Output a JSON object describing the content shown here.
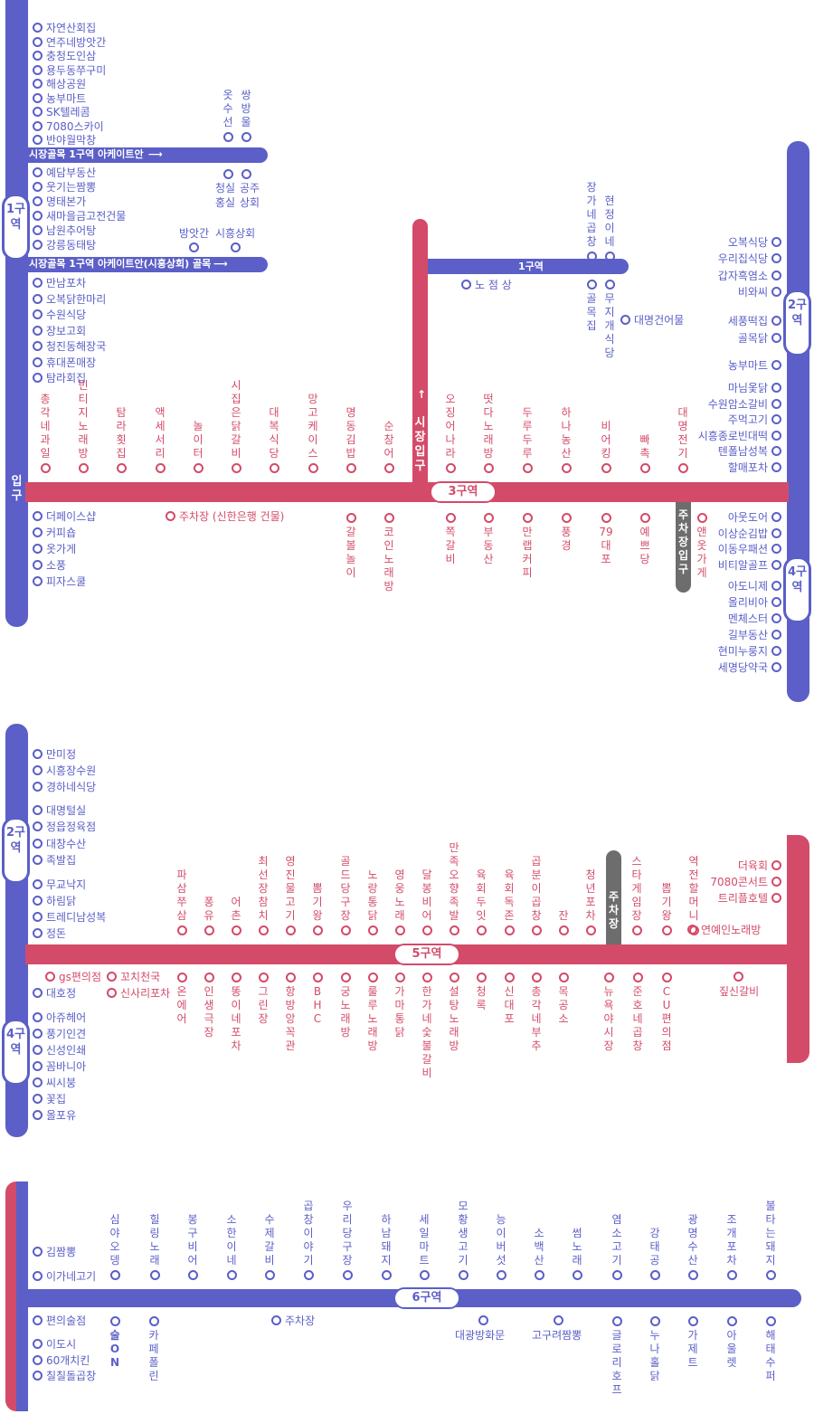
{
  "colors": {
    "blue": "#5b5fc7",
    "red": "#d34b69",
    "gray": "#6d6d6d"
  },
  "sec1": {
    "entrance": "입구",
    "z1": "1구역",
    "z2": "2구역",
    "z4": "4구역",
    "z3": "3구역",
    "market_entrance": "시장입구",
    "parking_entrance": "주차장입구",
    "arcade1": "시장골목 1구역 아케이트안",
    "arcade2": "시장골목 1구역 아케이트안(시흥상회) 골목",
    "zone1_bar": "1구역",
    "left_list": [
      "자연산회집",
      "연주네방앗간",
      "충청도인삼",
      "용두동쭈구미",
      "해상공원",
      "농부마트",
      "SK텔레콤",
      "7080스카이",
      "반야월막창"
    ],
    "left_list2": [
      "예담부동산",
      "웃기는짬뽕",
      "명태본가",
      "새마을금고전건물",
      "남원추어탕",
      "강릉동태탕"
    ],
    "left_list3": [
      "만남포차",
      "오복닭한마리",
      "수원식당",
      "장보고회",
      "청진동해장국",
      "휴대폰매장",
      "탐라회집"
    ],
    "left_list4": [
      "더페이스샵",
      "커피숍",
      "옷가게",
      "소풍",
      "피자스쿨"
    ],
    "v_oksu": "옷수선",
    "v_ssang": "쌍방울",
    "cheongsil": "청실 홍실",
    "gongju": "공주 상회",
    "bangat": "방앗간",
    "siheung_shop": "시흥상회",
    "v_janga": "장가네곱창",
    "v_hyeon": "현정이네",
    "v_golmok": "골목집",
    "v_muji": "무지개식당",
    "daemyeong_building": "대명건어물",
    "nojeom": "노 점 상",
    "right_list1": [
      "오복식당",
      "우리집식당",
      "갑자흑염소",
      "비와씨"
    ],
    "right_list2": [
      "세풍떡집",
      "골목닭"
    ],
    "right_list3": [
      "농부마트"
    ],
    "right_list4": [
      "마님옻닭",
      "수원암소갈비",
      "주먹고기",
      "시흥종로빈대떡",
      "텐폴남성복",
      "할매포차"
    ],
    "right_list5": [
      "아웃도어",
      "이상순김밥",
      "이동우패션",
      "비티알골프"
    ],
    "right_list6": [
      "아도니제",
      "올리비아",
      "멘체스터",
      "길부동산",
      "현미누룽지",
      "세명당약국"
    ],
    "top_red": [
      "총각네과일",
      "빈티지노래방",
      "탐라횟집",
      "액세서리",
      "놀이터",
      "시집은닭갈비",
      "대복식당",
      "망고케이스",
      "명동김밥",
      "순창어"
    ],
    "top_red2": [
      "오징어나라",
      "떳다노래방",
      "두루두루",
      "하나농산",
      "비어킹",
      "빠촉",
      "대명전기"
    ],
    "parking_shinhan": "주차장 (신한은행 건물)",
    "bot_red": [
      "갈볼놀이",
      "코인노래방"
    ],
    "bot_red2": [
      "쪽갈비",
      "부동산",
      "만랩커피",
      "풍경",
      "79대포",
      "예쁘당"
    ],
    "v_aen": "앤옷가게"
  },
  "sec2": {
    "z2": "2구역",
    "z4": "4구역",
    "z5": "5구역",
    "parking": "주차장",
    "left_list": [
      "만미정",
      "시흥장수원",
      "경하네식당"
    ],
    "left_list2": [
      "대명털실",
      "정읍정육점",
      "대창수산",
      "족발집"
    ],
    "left_list3": [
      "무교낙지",
      "하림닭",
      "트레디남성복",
      "정돈"
    ],
    "top_red": [
      "파삼쭈삼",
      "퐁유",
      "어촌",
      "최선장참치",
      "영진물고기",
      "뽐기왕",
      "골드당구장",
      "노랑통닭",
      "영웅노래",
      "달봉비어",
      "만족오향족발",
      "육회두잇",
      "육회독존",
      "곱분이곱창",
      "잔",
      "청년포차"
    ],
    "top_red2": [
      "스타게임장",
      "뽑기왕",
      "역전할머니"
    ],
    "right_list": [
      "더육회",
      "7080콘서트",
      "트리플호텔"
    ],
    "yeondeing": "연예인노래방",
    "gs": "gs편의점",
    "kkochi": "꼬치천국",
    "shinsari": "신사리포차",
    "daeho": "대호정",
    "left_bot": [
      "아쥬헤어",
      "풍기인견",
      "신성인쇄",
      "꼼바니아",
      "씨시붕",
      "꽃집",
      "올포유"
    ],
    "bot_red": [
      "온에어",
      "인생극장",
      "똥이네포차",
      "그린장",
      "항방앙꼭관",
      "BHC",
      "궁노래방",
      "룰루노래방",
      "가마통닭",
      "한가네숯불갈비",
      "설탕노래방",
      "청록",
      "신대포",
      "총각네부추",
      "목공소",
      "뉴욕야시장",
      "준호네곱창",
      "CU편의점"
    ],
    "jjip": "짚신갈비"
  },
  "sec3": {
    "z6": "6구역",
    "left_top": [
      "김짬뽕",
      "이가네고기"
    ],
    "top_blue": [
      "심야오뎅",
      "힐링노래",
      "봉구비어",
      "소한이네",
      "수제갈비",
      "곱창이야기",
      "우리당구장",
      "하남돼지",
      "세일마트",
      "모황생고기",
      "능이버섯",
      "소백산",
      "썸노래",
      "염소고기",
      "강태공",
      "광명수산",
      "조개포차",
      "불타는돼지"
    ],
    "left_bot": [
      "편의술점",
      "이도시",
      "60개치킨",
      "칠칠돌곱창"
    ],
    "v_sul": "술ON",
    "v_kape": "카페폴린",
    "parking": "주차장",
    "daegwang": "대광방화문",
    "gogu": "고구려짬뽕",
    "bot_blue": [
      "글로리호프",
      "누나홀닭",
      "가제트",
      "아울렛",
      "해태수퍼"
    ]
  }
}
